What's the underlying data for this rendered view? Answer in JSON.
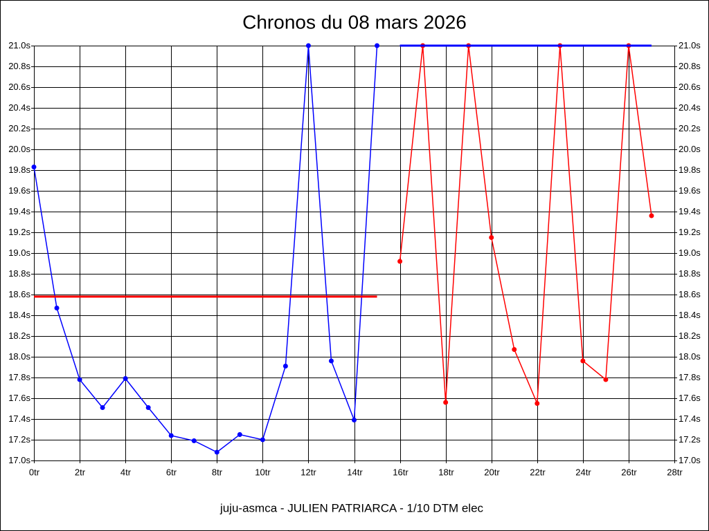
{
  "chart_data": {
    "type": "line",
    "title": "Chronos du 08 mars 2026",
    "footer": "juju-asmca - JULIEN PATRIARCA - 1/10 DTM elec",
    "xlim": [
      0,
      28
    ],
    "xticks": [
      {
        "value": 0,
        "label": "0tr"
      },
      {
        "value": 2,
        "label": "2tr"
      },
      {
        "value": 4,
        "label": "4tr"
      },
      {
        "value": 6,
        "label": "6tr"
      },
      {
        "value": 8,
        "label": "8tr"
      },
      {
        "value": 10,
        "label": "10tr"
      },
      {
        "value": 12,
        "label": "12tr"
      },
      {
        "value": 14,
        "label": "14tr"
      },
      {
        "value": 16,
        "label": "16tr"
      },
      {
        "value": 18,
        "label": "18tr"
      },
      {
        "value": 20,
        "label": "20tr"
      },
      {
        "value": 22,
        "label": "22tr"
      },
      {
        "value": 24,
        "label": "24tr"
      },
      {
        "value": 26,
        "label": "26tr"
      },
      {
        "value": 28,
        "label": "28tr"
      }
    ],
    "ylim": [
      17.0,
      21.0
    ],
    "yticks": [
      {
        "value": 17.0,
        "label": "17.0s"
      },
      {
        "value": 17.2,
        "label": "17.2s"
      },
      {
        "value": 17.4,
        "label": "17.4s"
      },
      {
        "value": 17.6,
        "label": "17.6s"
      },
      {
        "value": 17.8,
        "label": "17.8s"
      },
      {
        "value": 18.0,
        "label": "18.0s"
      },
      {
        "value": 18.2,
        "label": "18.2s"
      },
      {
        "value": 18.4,
        "label": "18.4s"
      },
      {
        "value": 18.6,
        "label": "18.6s"
      },
      {
        "value": 18.8,
        "label": "18.8s"
      },
      {
        "value": 19.0,
        "label": "19.0s"
      },
      {
        "value": 19.2,
        "label": "19.2s"
      },
      {
        "value": 19.4,
        "label": "19.4s"
      },
      {
        "value": 19.6,
        "label": "19.6s"
      },
      {
        "value": 19.8,
        "label": "19.8s"
      },
      {
        "value": 20.0,
        "label": "20.0s"
      },
      {
        "value": 20.2,
        "label": "20.2s"
      },
      {
        "value": 20.4,
        "label": "20.4s"
      },
      {
        "value": 20.6,
        "label": "20.6s"
      },
      {
        "value": 20.8,
        "label": "20.8s"
      },
      {
        "value": 21.0,
        "label": "21.0s"
      }
    ],
    "grid": true,
    "series": [
      {
        "color": "#0000ff",
        "markers": true,
        "x": [
          0,
          1,
          2,
          3,
          4,
          5,
          6,
          7,
          8,
          9,
          10,
          11,
          12,
          13,
          14,
          15
        ],
        "values": [
          19.83,
          18.47,
          17.78,
          17.51,
          17.79,
          17.51,
          17.24,
          17.19,
          17.08,
          17.25,
          17.2,
          17.91,
          21.0,
          17.96,
          17.39,
          21.0
        ]
      },
      {
        "color": "#ff0000",
        "markers": true,
        "x": [
          16,
          17,
          18,
          19,
          20,
          21,
          22,
          23,
          24,
          25,
          26,
          27
        ],
        "values": [
          18.92,
          21.0,
          17.56,
          21.0,
          19.15,
          18.07,
          17.55,
          21.0,
          17.96,
          17.78,
          21.0,
          19.36
        ]
      },
      {
        "color": "#ff0000",
        "markers": false,
        "x": [
          0,
          15
        ],
        "values": [
          18.58,
          18.58
        ]
      },
      {
        "color": "#0000ff",
        "markers": false,
        "x": [
          16,
          27
        ],
        "values": [
          21.0,
          21.0
        ]
      }
    ]
  }
}
